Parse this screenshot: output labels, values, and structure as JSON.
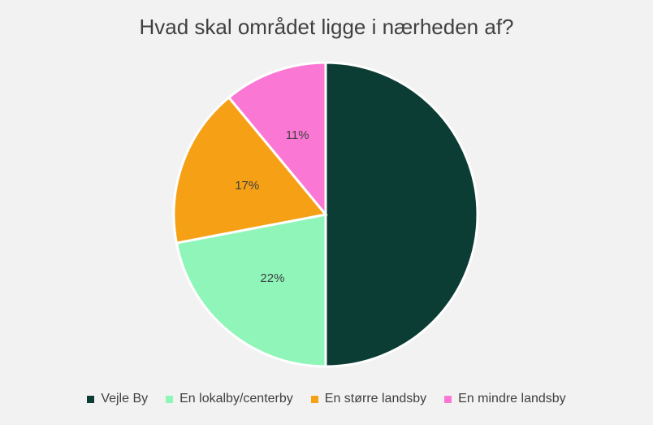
{
  "chart_data": {
    "type": "pie",
    "title": "Hvad skal området ligge i nærheden af?",
    "slices": [
      {
        "label": "Vejle By",
        "value": 50,
        "display": "50%",
        "color": "#0b3d35",
        "label_color": "#0b3d35"
      },
      {
        "label": "En lokalby/centerby",
        "value": 22,
        "display": "22%",
        "color": "#8ff5b9",
        "label_color": "#404040"
      },
      {
        "label": "En større landsby",
        "value": 17,
        "display": "17%",
        "color": "#f5a015",
        "label_color": "#404040"
      },
      {
        "label": "En mindre landsby",
        "value": 11,
        "display": "11%",
        "color": "#fa78d3",
        "label_color": "#404040"
      }
    ],
    "legend_position": "bottom"
  }
}
